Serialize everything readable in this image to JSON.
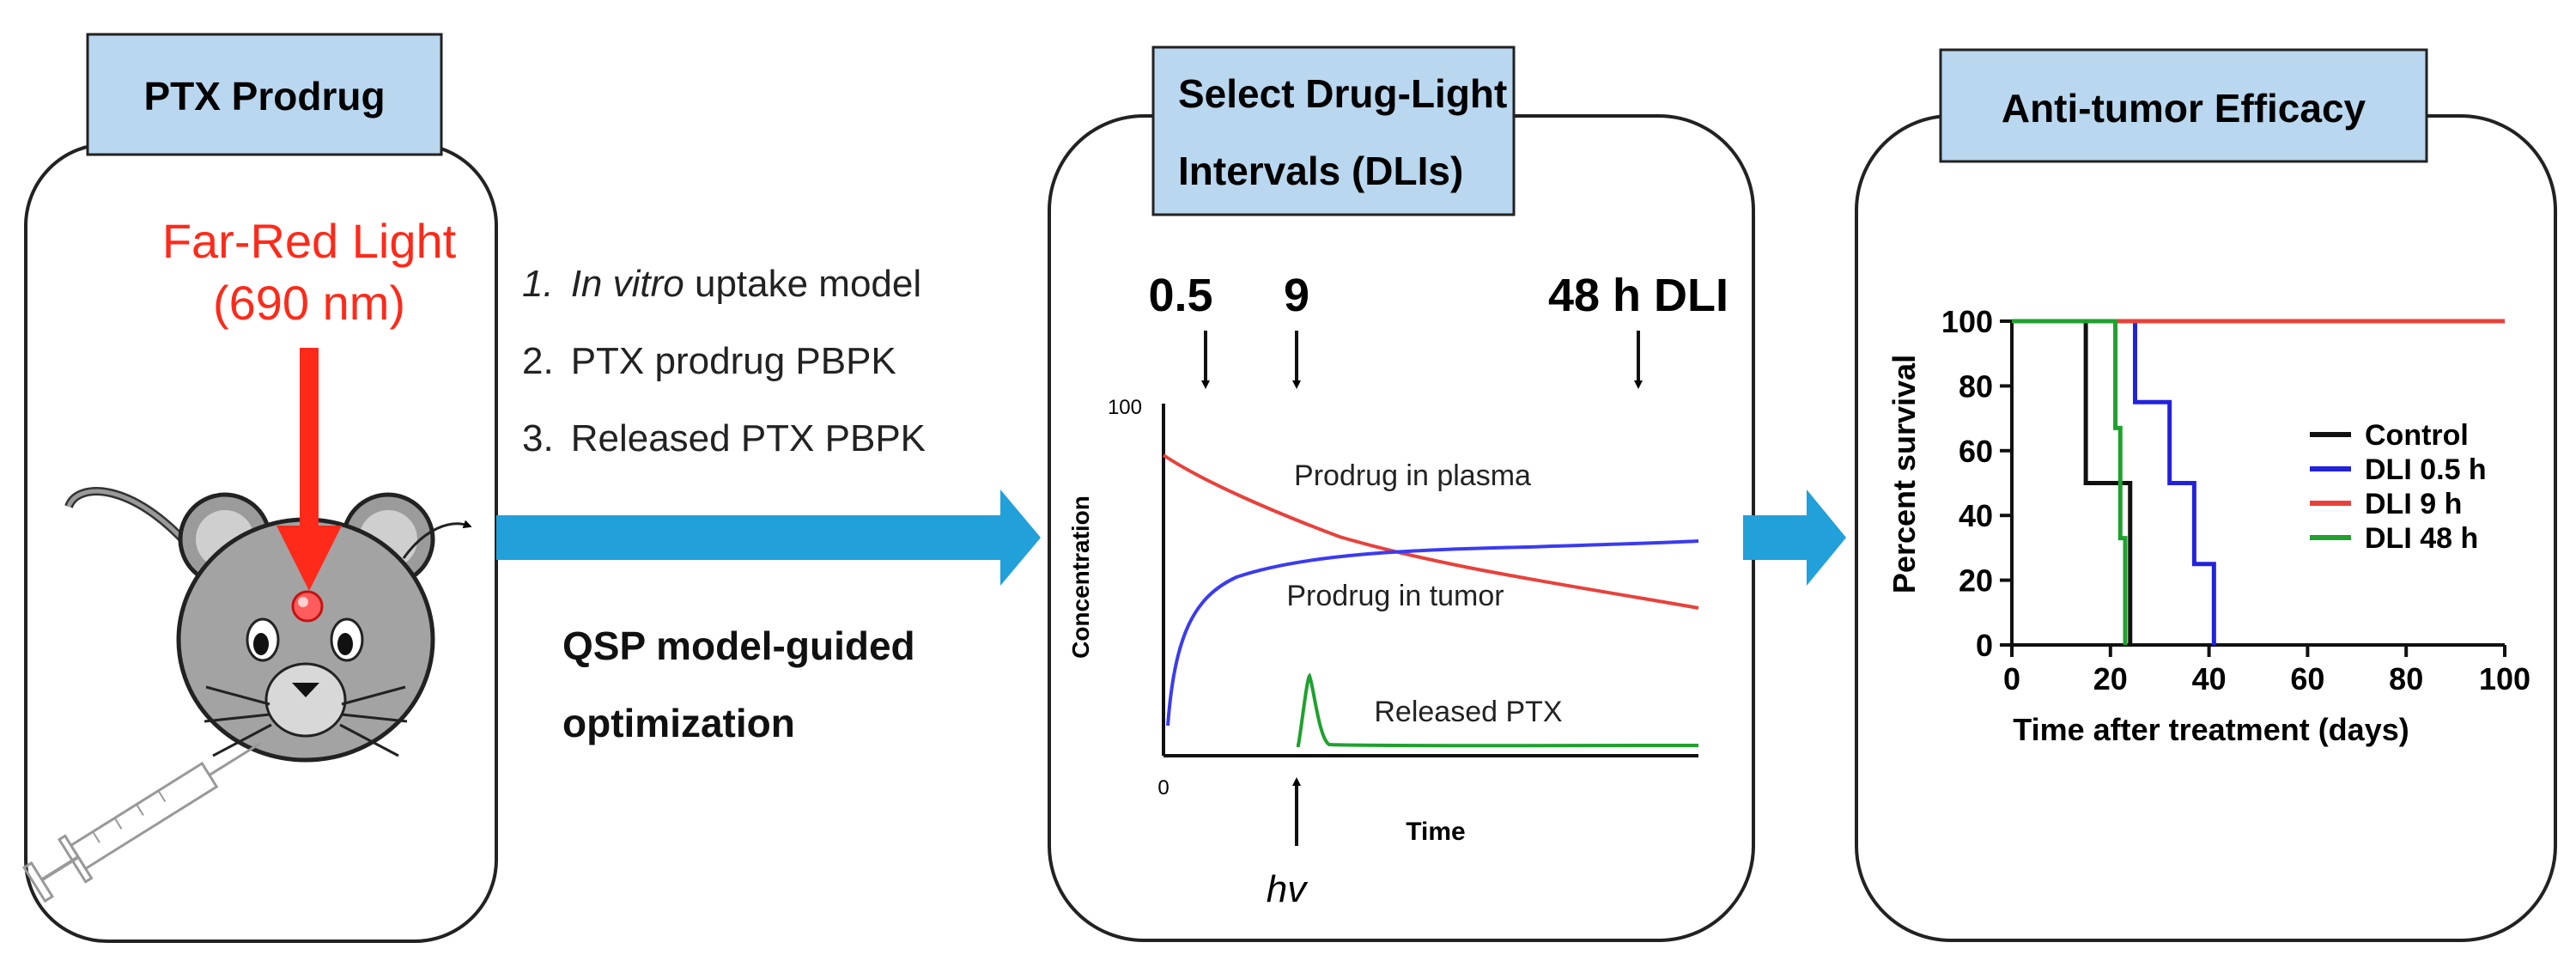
{
  "panel1": {
    "title": "PTX Prodrug",
    "light_line1": "Far-Red Light",
    "light_line2": "(690 nm)"
  },
  "steps": [
    {
      "num": "1.",
      "italic": "In vitro",
      "rest": " uptake model"
    },
    {
      "num": "2.",
      "italic": "",
      "rest": "PTX prodrug PBPK"
    },
    {
      "num": "3.",
      "italic": "",
      "rest": "Released PTX PBPK"
    }
  ],
  "qsp_label": {
    "line1": "QSP model-guided",
    "line2": "optimization"
  },
  "panel2": {
    "title_line1": "Select Drug-Light",
    "title_line2": "Intervals (DLIs)",
    "dli_labels": [
      "0.5",
      "9",
      "48 h DLI"
    ],
    "hv_label": "hv",
    "chart": {
      "type": "line",
      "ylabel": "Concentration",
      "xlabel": "Time",
      "x_tick_label": "0",
      "y_tick_label": "100",
      "xlim": [
        0,
        48
      ],
      "ylim": [
        0,
        100
      ],
      "series": [
        {
          "name": "Prodrug in plasma",
          "color": "#e8413c"
        },
        {
          "name": "Prodrug in tumor",
          "color": "#3b3bf0"
        },
        {
          "name": "Released PTX",
          "color": "#1fa12e"
        }
      ]
    }
  },
  "panel3": {
    "title": "Anti-tumor Efficacy",
    "chart_data": {
      "type": "line",
      "xlabel": "Time after treatment (days)",
      "ylabel": "Percent survival",
      "xlim": [
        0,
        100
      ],
      "ylim": [
        0,
        100
      ],
      "x_ticks": [
        0,
        20,
        40,
        60,
        80,
        100
      ],
      "y_ticks": [
        0,
        20,
        40,
        60,
        80,
        100
      ],
      "series": [
        {
          "name": "Control",
          "color": "#111111",
          "x": [
            0,
            15,
            15,
            24,
            24
          ],
          "y": [
            100,
            100,
            50,
            50,
            0
          ]
        },
        {
          "name": "DLI 0.5 h",
          "color": "#2222dd",
          "x": [
            0,
            25,
            25,
            32,
            32,
            37,
            37,
            41,
            41
          ],
          "y": [
            100,
            100,
            75,
            75,
            50,
            50,
            25,
            25,
            0
          ]
        },
        {
          "name": "DLI 9 h",
          "color": "#e8413c",
          "x": [
            0,
            100
          ],
          "y": [
            100,
            100
          ]
        },
        {
          "name": "DLI 48 h",
          "color": "#1fa12e",
          "x": [
            0,
            21,
            21,
            22,
            22,
            23,
            23
          ],
          "y": [
            100,
            100,
            67,
            67,
            33,
            33,
            0
          ]
        }
      ]
    }
  },
  "colors": {
    "title_box": "#b9d7ef",
    "arrow_blue": "#21a0da",
    "light_red": "#ff2a1a"
  }
}
